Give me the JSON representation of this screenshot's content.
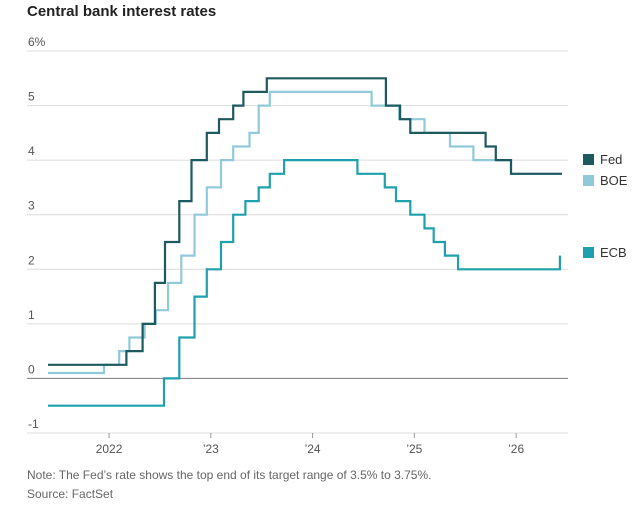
{
  "title": "Central bank interest rates",
  "note": "Note: The Fed’s rate shows the top end of its target range of 3.5% to 3.75%.",
  "source": "Source: FactSet",
  "chart_data": {
    "type": "line",
    "step": true,
    "title": "Central bank interest rates",
    "xlabel": "",
    "ylabel": "",
    "xlim": [
      2021.4,
      2026.5
    ],
    "ylim": [
      -1,
      6
    ],
    "x_ticks": [
      {
        "x": 2022.0,
        "label": "2022"
      },
      {
        "x": 2023.0,
        "label": "’23"
      },
      {
        "x": 2024.0,
        "label": "’24"
      },
      {
        "x": 2025.0,
        "label": "’25"
      },
      {
        "x": 2026.0,
        "label": "’26"
      }
    ],
    "y_ticks": [
      {
        "y": 6,
        "label": "6%"
      },
      {
        "y": 5,
        "label": "5"
      },
      {
        "y": 4,
        "label": "4"
      },
      {
        "y": 3,
        "label": "3"
      },
      {
        "y": 2,
        "label": "2"
      },
      {
        "y": 1,
        "label": "1"
      },
      {
        "y": 0,
        "label": "0"
      },
      {
        "y": -1,
        "label": "-1"
      }
    ],
    "grid": true,
    "legend_position": "right",
    "series": [
      {
        "name": "Fed",
        "color": "#1d5a5f",
        "points": [
          [
            2021.4,
            0.25
          ],
          [
            2022.17,
            0.25
          ],
          [
            2022.17,
            0.5
          ],
          [
            2022.33,
            0.5
          ],
          [
            2022.33,
            1.0
          ],
          [
            2022.45,
            1.0
          ],
          [
            2022.45,
            1.75
          ],
          [
            2022.55,
            1.75
          ],
          [
            2022.55,
            2.5
          ],
          [
            2022.69,
            2.5
          ],
          [
            2022.69,
            3.25
          ],
          [
            2022.81,
            3.25
          ],
          [
            2022.81,
            4.0
          ],
          [
            2022.96,
            4.0
          ],
          [
            2022.96,
            4.5
          ],
          [
            2023.08,
            4.5
          ],
          [
            2023.08,
            4.75
          ],
          [
            2023.22,
            4.75
          ],
          [
            2023.22,
            5.0
          ],
          [
            2023.32,
            5.0
          ],
          [
            2023.32,
            5.25
          ],
          [
            2023.55,
            5.25
          ],
          [
            2023.55,
            5.5
          ],
          [
            2024.72,
            5.5
          ],
          [
            2024.72,
            5.0
          ],
          [
            2024.86,
            5.0
          ],
          [
            2024.86,
            4.75
          ],
          [
            2024.96,
            4.75
          ],
          [
            2024.96,
            4.5
          ],
          [
            2025.7,
            4.5
          ],
          [
            2025.7,
            4.25
          ],
          [
            2025.8,
            4.25
          ],
          [
            2025.8,
            4.0
          ],
          [
            2025.95,
            4.0
          ],
          [
            2025.95,
            3.75
          ],
          [
            2026.45,
            3.75
          ]
        ]
      },
      {
        "name": "BOE",
        "color": "#90c9da",
        "points": [
          [
            2021.4,
            0.1
          ],
          [
            2021.95,
            0.1
          ],
          [
            2021.95,
            0.25
          ],
          [
            2022.1,
            0.25
          ],
          [
            2022.1,
            0.5
          ],
          [
            2022.2,
            0.5
          ],
          [
            2022.2,
            0.75
          ],
          [
            2022.35,
            0.75
          ],
          [
            2022.35,
            1.0
          ],
          [
            2022.46,
            1.0
          ],
          [
            2022.46,
            1.25
          ],
          [
            2022.58,
            1.25
          ],
          [
            2022.58,
            1.75
          ],
          [
            2022.71,
            1.75
          ],
          [
            2022.71,
            2.25
          ],
          [
            2022.84,
            2.25
          ],
          [
            2022.84,
            3.0
          ],
          [
            2022.96,
            3.0
          ],
          [
            2022.96,
            3.5
          ],
          [
            2023.1,
            3.5
          ],
          [
            2023.1,
            4.0
          ],
          [
            2023.22,
            4.0
          ],
          [
            2023.22,
            4.25
          ],
          [
            2023.38,
            4.25
          ],
          [
            2023.38,
            4.5
          ],
          [
            2023.47,
            4.5
          ],
          [
            2023.47,
            5.0
          ],
          [
            2023.58,
            5.0
          ],
          [
            2023.58,
            5.25
          ],
          [
            2024.58,
            5.25
          ],
          [
            2024.58,
            5.0
          ],
          [
            2024.85,
            5.0
          ],
          [
            2024.85,
            4.75
          ],
          [
            2025.1,
            4.75
          ],
          [
            2025.1,
            4.5
          ],
          [
            2025.35,
            4.5
          ],
          [
            2025.35,
            4.25
          ],
          [
            2025.58,
            4.25
          ],
          [
            2025.58,
            4.0
          ],
          [
            2025.95,
            4.0
          ],
          [
            2025.95,
            3.75
          ],
          [
            2026.45,
            3.75
          ]
        ]
      },
      {
        "name": "ECB",
        "color": "#1fa0ad",
        "points": [
          [
            2021.4,
            -0.5
          ],
          [
            2022.54,
            -0.5
          ],
          [
            2022.54,
            0.0
          ],
          [
            2022.69,
            0.0
          ],
          [
            2022.69,
            0.75
          ],
          [
            2022.84,
            0.75
          ],
          [
            2022.84,
            1.5
          ],
          [
            2022.96,
            1.5
          ],
          [
            2022.96,
            2.0
          ],
          [
            2023.1,
            2.0
          ],
          [
            2023.1,
            2.5
          ],
          [
            2023.22,
            2.5
          ],
          [
            2023.22,
            3.0
          ],
          [
            2023.34,
            3.0
          ],
          [
            2023.34,
            3.25
          ],
          [
            2023.47,
            3.25
          ],
          [
            2023.47,
            3.5
          ],
          [
            2023.58,
            3.5
          ],
          [
            2023.58,
            3.75
          ],
          [
            2023.72,
            3.75
          ],
          [
            2023.72,
            4.0
          ],
          [
            2024.44,
            4.0
          ],
          [
            2024.44,
            3.75
          ],
          [
            2024.71,
            3.75
          ],
          [
            2024.71,
            3.5
          ],
          [
            2024.82,
            3.5
          ],
          [
            2024.82,
            3.25
          ],
          [
            2024.96,
            3.25
          ],
          [
            2024.96,
            3.0
          ],
          [
            2025.1,
            3.0
          ],
          [
            2025.1,
            2.75
          ],
          [
            2025.19,
            2.75
          ],
          [
            2025.19,
            2.5
          ],
          [
            2025.3,
            2.5
          ],
          [
            2025.3,
            2.25
          ],
          [
            2025.43,
            2.25
          ],
          [
            2025.43,
            2.0
          ],
          [
            2026.43,
            2.0
          ],
          [
            2026.43,
            2.25
          ]
        ]
      }
    ]
  }
}
